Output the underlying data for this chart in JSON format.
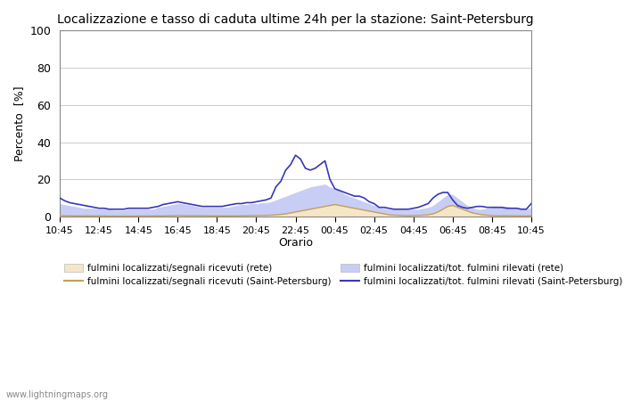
{
  "title": "Localizzazione e tasso di caduta ultime 24h per la stazione: Saint-Petersburg",
  "ylabel": "Percento  [%]",
  "xlabel": "Orario",
  "xlabels": [
    "10:45",
    "12:45",
    "14:45",
    "16:45",
    "18:45",
    "20:45",
    "22:45",
    "00:45",
    "02:45",
    "04:45",
    "06:45",
    "08:45",
    "10:45"
  ],
  "ylim": [
    0,
    100
  ],
  "yticks": [
    0,
    20,
    40,
    60,
    80,
    100
  ],
  "grid_color": "#cccccc",
  "watermark": "www.lightningmaps.org",
  "fill_rete_color": "#f5e6c8",
  "fill_spb_color": "#c8cdf5",
  "line_rete_color": "#c8a050",
  "line_spb_color": "#3838b8",
  "n_points": 97,
  "fill_rete": [
    0.5,
    0.5,
    0.5,
    0.4,
    0.4,
    0.4,
    0.4,
    0.4,
    0.4,
    0.4,
    0.3,
    0.3,
    0.3,
    0.3,
    0.3,
    0.3,
    0.4,
    0.4,
    0.4,
    0.4,
    0.4,
    0.4,
    0.5,
    0.5,
    0.6,
    0.6,
    0.5,
    0.5,
    0.5,
    0.5,
    0.5,
    0.4,
    0.4,
    0.4,
    0.4,
    0.4,
    0.4,
    0.5,
    0.5,
    0.6,
    0.6,
    0.7,
    0.7,
    0.8,
    1.0,
    1.2,
    1.5,
    2.0,
    2.5,
    3.0,
    3.5,
    4.0,
    4.5,
    5.0,
    5.5,
    6.0,
    6.5,
    6.0,
    5.5,
    5.0,
    4.5,
    4.0,
    3.5,
    3.0,
    2.5,
    2.0,
    1.5,
    1.0,
    0.8,
    0.7,
    0.6,
    0.5,
    0.6,
    0.7,
    0.8,
    1.0,
    1.5,
    2.5,
    4.0,
    5.5,
    6.0,
    5.0,
    4.0,
    3.0,
    2.0,
    1.5,
    1.0,
    0.8,
    0.6,
    0.5,
    0.5,
    0.5,
    0.5,
    0.4,
    0.4,
    0.4,
    0.5
  ],
  "fill_spb": [
    7.0,
    6.5,
    6.0,
    5.5,
    5.0,
    4.5,
    4.5,
    4.5,
    4.0,
    4.0,
    4.0,
    3.5,
    3.5,
    3.5,
    4.0,
    4.0,
    4.0,
    4.0,
    4.0,
    4.0,
    5.0,
    5.5,
    6.0,
    6.5,
    7.0,
    7.0,
    6.5,
    6.0,
    5.5,
    5.0,
    5.0,
    5.0,
    5.0,
    5.0,
    5.0,
    5.5,
    6.0,
    6.5,
    6.5,
    7.0,
    7.0,
    7.5,
    7.5,
    8.0,
    9.0,
    10.0,
    11.0,
    12.0,
    13.0,
    14.0,
    15.0,
    16.0,
    16.5,
    17.0,
    17.5,
    16.0,
    15.0,
    14.0,
    12.0,
    11.0,
    10.0,
    9.0,
    8.0,
    7.0,
    6.0,
    5.0,
    4.5,
    4.0,
    4.0,
    4.0,
    4.0,
    4.0,
    4.0,
    4.0,
    4.5,
    5.0,
    6.0,
    8.0,
    10.0,
    12.0,
    12.0,
    10.0,
    8.0,
    6.0,
    5.0,
    4.0,
    4.0,
    4.5,
    5.0,
    5.5,
    5.5,
    5.5,
    5.0,
    4.5,
    4.5,
    4.0,
    5.0
  ],
  "line_rete": [
    0.5,
    0.5,
    0.5,
    0.4,
    0.4,
    0.4,
    0.4,
    0.4,
    0.4,
    0.4,
    0.3,
    0.3,
    0.3,
    0.3,
    0.3,
    0.3,
    0.4,
    0.4,
    0.4,
    0.4,
    0.4,
    0.4,
    0.5,
    0.5,
    0.6,
    0.6,
    0.5,
    0.5,
    0.5,
    0.5,
    0.5,
    0.4,
    0.4,
    0.4,
    0.4,
    0.4,
    0.4,
    0.5,
    0.5,
    0.6,
    0.6,
    0.7,
    0.7,
    0.8,
    1.0,
    1.2,
    1.5,
    2.0,
    2.5,
    3.0,
    3.5,
    4.0,
    4.5,
    5.0,
    5.5,
    6.0,
    6.5,
    6.0,
    5.5,
    5.0,
    4.5,
    4.0,
    3.5,
    3.0,
    2.5,
    2.0,
    1.5,
    1.0,
    0.8,
    0.7,
    0.6,
    0.5,
    0.6,
    0.7,
    0.8,
    1.0,
    1.5,
    2.5,
    4.0,
    5.5,
    6.0,
    5.0,
    4.0,
    3.0,
    2.0,
    1.5,
    1.0,
    0.8,
    0.6,
    0.5,
    0.5,
    0.5,
    0.5,
    0.4,
    0.4,
    0.4,
    0.5
  ],
  "line_spb": [
    10.0,
    8.5,
    7.5,
    7.0,
    6.5,
    6.0,
    5.5,
    5.0,
    4.5,
    4.5,
    4.0,
    4.0,
    4.0,
    4.0,
    4.5,
    4.5,
    4.5,
    4.5,
    4.5,
    5.0,
    5.5,
    6.5,
    7.0,
    7.5,
    8.0,
    7.5,
    7.0,
    6.5,
    6.0,
    5.5,
    5.5,
    5.5,
    5.5,
    5.5,
    6.0,
    6.5,
    7.0,
    7.0,
    7.5,
    7.5,
    8.0,
    8.5,
    9.0,
    10.0,
    16.0,
    19.0,
    25.0,
    28.0,
    33.0,
    31.0,
    26.0,
    25.0,
    26.0,
    28.0,
    30.0,
    20.0,
    15.0,
    14.0,
    13.0,
    12.0,
    11.0,
    11.0,
    10.0,
    8.0,
    7.0,
    5.0,
    5.0,
    4.5,
    4.0,
    4.0,
    4.0,
    4.0,
    4.5,
    5.0,
    6.0,
    7.0,
    10.0,
    12.0,
    13.0,
    13.0,
    9.0,
    6.0,
    5.0,
    4.5,
    5.0,
    5.5,
    5.5,
    5.0,
    5.0,
    5.0,
    5.0,
    4.5,
    4.5,
    4.5,
    4.0,
    4.0,
    7.0
  ]
}
